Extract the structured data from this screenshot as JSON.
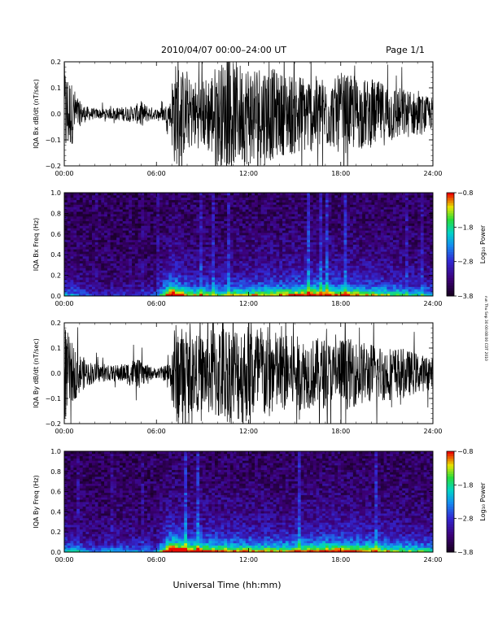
{
  "header": {
    "date_range": "2010/04/07   00:00–24:00  UT",
    "page": "Page 1/1"
  },
  "footer": {
    "xlabel": "Universal Time (hh:mm)"
  },
  "side_note": "run Thu Sep 30 00:08:00 CDT 2010",
  "chart_data": [
    {
      "type": "line",
      "ylabel": "IQA Bx dB/dt (nT/sec)",
      "xlim": [
        0,
        24
      ],
      "ylim": [
        -0.2,
        0.2
      ],
      "yticks": [
        -0.2,
        -0.1,
        0.0,
        0.1,
        0.2
      ],
      "ytick_labels": [
        "−0.2",
        "−0.1",
        "0.0",
        "0.1",
        "0.2"
      ],
      "xticks": [
        0,
        6,
        12,
        18,
        24
      ],
      "xtick_labels": [
        "00:00",
        "06:00",
        "12:00",
        "18:00",
        "24:00"
      ],
      "envelope_hours": [
        0.0,
        0.5,
        1.0,
        1.4,
        2.0,
        3.0,
        4.0,
        4.5,
        5.0,
        5.5,
        6.0,
        6.5,
        6.9,
        7.1,
        7.5,
        8.0,
        9.0,
        10.0,
        11.0,
        12.0,
        13.0,
        14.0,
        15.0,
        16.0,
        17.0,
        17.5,
        18.0,
        19.0,
        20.0,
        21.0,
        22.0,
        23.0,
        24.0
      ],
      "envelope_amplitude": [
        0.2,
        0.12,
        0.05,
        0.03,
        0.02,
        0.02,
        0.03,
        0.03,
        0.05,
        0.03,
        0.02,
        0.03,
        0.05,
        0.2,
        0.2,
        0.14,
        0.13,
        0.2,
        0.2,
        0.2,
        0.2,
        0.16,
        0.16,
        0.15,
        0.14,
        0.13,
        0.16,
        0.14,
        0.13,
        0.12,
        0.1,
        0.08,
        0.06
      ]
    },
    {
      "type": "heatmap",
      "ylabel": "IQA Bx Freq (Hz)",
      "xlim": [
        0,
        24
      ],
      "ylim": [
        0.0,
        1.0
      ],
      "yticks": [
        0.0,
        0.2,
        0.4,
        0.6,
        0.8,
        1.0
      ],
      "ytick_labels": [
        "0.0",
        "0.2",
        "0.4",
        "0.6",
        "0.8",
        "1.0"
      ],
      "xticks": [
        0,
        6,
        12,
        18,
        24
      ],
      "xtick_labels": [
        "00:00",
        "06:00",
        "12:00",
        "18:00",
        "24:00"
      ],
      "colorbar": {
        "label": "Log₁₀ Power",
        "range": [
          -3.8,
          -0.8
        ],
        "ticks": [
          -0.8,
          -1.8,
          -2.8,
          -3.8
        ],
        "tick_labels": [
          "−0.8",
          "−1.8",
          "−2.8",
          "−3.8"
        ]
      },
      "activity_hours": [
        0,
        2,
        4,
        6,
        7,
        8,
        10,
        12,
        14,
        16,
        18,
        20,
        22,
        24
      ],
      "activity_level": [
        0.35,
        0.15,
        0.15,
        0.2,
        0.9,
        0.55,
        0.5,
        0.55,
        0.6,
        0.7,
        0.65,
        0.55,
        0.45,
        0.35
      ]
    },
    {
      "type": "line",
      "ylabel": "IQA By dB/dt (nT/sec)",
      "xlim": [
        0,
        24
      ],
      "ylim": [
        -0.2,
        0.2
      ],
      "yticks": [
        -0.2,
        -0.1,
        0.0,
        0.1,
        0.2
      ],
      "ytick_labels": [
        "−0.2",
        "−0.1",
        "0.0",
        "0.1",
        "0.2"
      ],
      "xticks": [
        0,
        6,
        12,
        18,
        24
      ],
      "xtick_labels": [
        "00:00",
        "06:00",
        "12:00",
        "18:00",
        "24:00"
      ],
      "envelope_hours": [
        0.0,
        0.5,
        1.0,
        1.5,
        2.0,
        3.0,
        4.0,
        4.5,
        5.0,
        5.5,
        6.0,
        6.5,
        6.9,
        7.1,
        7.5,
        8.0,
        9.0,
        10.0,
        11.0,
        12.0,
        13.0,
        14.0,
        15.0,
        16.0,
        17.0,
        17.5,
        18.0,
        19.0,
        20.0,
        21.0,
        22.0,
        23.0,
        24.0
      ],
      "envelope_amplitude": [
        0.2,
        0.12,
        0.08,
        0.05,
        0.04,
        0.03,
        0.04,
        0.06,
        0.05,
        0.03,
        0.02,
        0.03,
        0.05,
        0.2,
        0.2,
        0.16,
        0.15,
        0.2,
        0.2,
        0.2,
        0.2,
        0.16,
        0.15,
        0.14,
        0.14,
        0.12,
        0.15,
        0.13,
        0.12,
        0.11,
        0.1,
        0.08,
        0.06
      ]
    },
    {
      "type": "heatmap",
      "ylabel": "IQA By Freq (Hz)",
      "xlim": [
        0,
        24
      ],
      "ylim": [
        0.0,
        1.0
      ],
      "yticks": [
        0.0,
        0.2,
        0.4,
        0.6,
        0.8,
        1.0
      ],
      "ytick_labels": [
        "0.0",
        "0.2",
        "0.4",
        "0.6",
        "0.8",
        "1.0"
      ],
      "xticks": [
        0,
        6,
        12,
        18,
        24
      ],
      "xtick_labels": [
        "00:00",
        "06:00",
        "12:00",
        "18:00",
        "24:00"
      ],
      "colorbar": {
        "label": "Log₁₀ Power",
        "range": [
          -3.8,
          -0.8
        ],
        "ticks": [
          -0.8,
          -1.8,
          -2.8,
          -3.8
        ],
        "tick_labels": [
          "−0.8",
          "−1.8",
          "−2.8",
          "−3.8"
        ]
      },
      "activity_hours": [
        0,
        2,
        4,
        6,
        7,
        8,
        10,
        12,
        14,
        16,
        18,
        20,
        22,
        24
      ],
      "activity_level": [
        0.4,
        0.25,
        0.3,
        0.25,
        0.95,
        0.7,
        0.65,
        0.6,
        0.55,
        0.65,
        0.7,
        0.6,
        0.5,
        0.45
      ]
    }
  ]
}
